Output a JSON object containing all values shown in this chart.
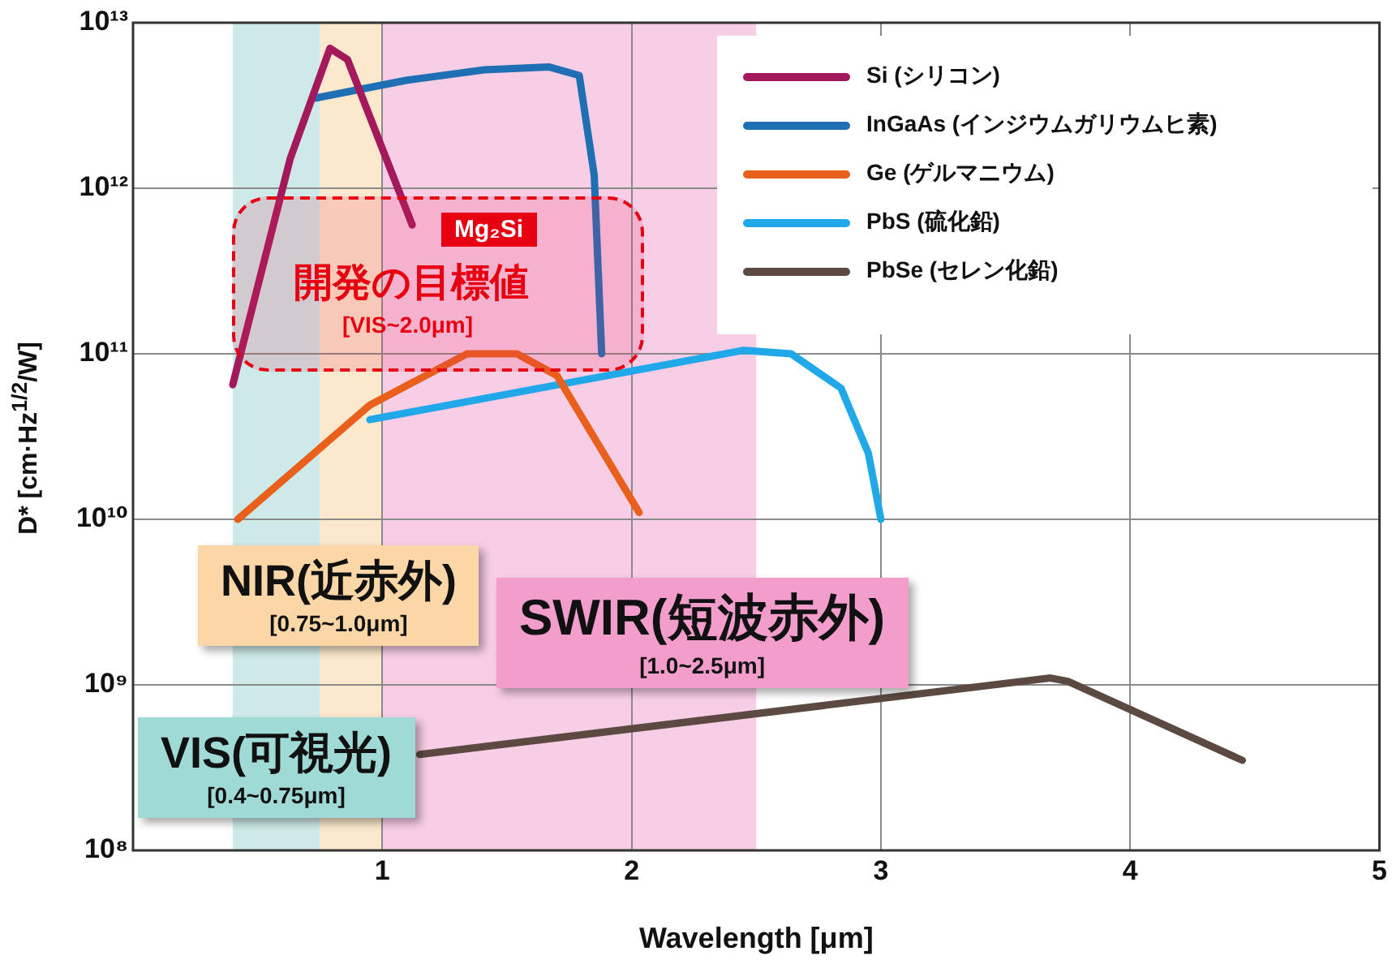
{
  "chart_data": {
    "type": "line",
    "xlabel": "Wavelength [μm]",
    "ylabel": "D* [cm·Hz$^{1/2}$/W]",
    "xlim": [
      0,
      5
    ],
    "xticks": [
      1,
      2,
      3,
      4,
      5
    ],
    "ylim": [
      100000000.0,
      10000000000000.0
    ],
    "yticks": [
      {
        "value": 100000000.0,
        "label": "10⁸"
      },
      {
        "value": 1000000000.0,
        "label": "10⁹"
      },
      {
        "value": 10000000000.0,
        "label": "10¹⁰"
      },
      {
        "value": 100000000000.0,
        "label": "10¹¹"
      },
      {
        "value": 1000000000000.0,
        "label": "10¹²"
      },
      {
        "value": 10000000000000.0,
        "label": "10¹³"
      }
    ],
    "log": "y",
    "grid": true,
    "legend": "top right",
    "line_style": "solid",
    "marker": "none",
    "series": [
      {
        "name": "Si (シリコン)",
        "color": "#a3195b",
        "x": [
          0.4,
          0.63,
          0.79,
          0.86,
          1.12
        ],
        "values": [
          65000000000.0,
          1500000000000.0,
          7000000000000.0,
          6000000000000.0,
          600000000000.0
        ]
      },
      {
        "name": "InGaAs (インジウムガリウムヒ素)",
        "color": "#1f6fb5",
        "x": [
          0.73,
          1.1,
          1.41,
          1.67,
          1.79,
          1.85,
          1.88
        ],
        "values": [
          3500000000000.0,
          4500000000000.0,
          5200000000000.0,
          5400000000000.0,
          4800000000000.0,
          1200000000000.0,
          100000000000.0
        ]
      },
      {
        "name": "Ge (ゲルマニウム)",
        "color": "#e8601c",
        "x": [
          0.42,
          0.95,
          1.34,
          1.54,
          1.7,
          2.03
        ],
        "values": [
          10000000000.0,
          49000000000.0,
          100000000000.0,
          100000000000.0,
          74000000000.0,
          11000000000.0
        ]
      },
      {
        "name": "PbS (硫化鉛)",
        "color": "#20a8e8",
        "x": [
          0.95,
          2.45,
          2.64,
          2.84,
          2.95,
          3.0
        ],
        "values": [
          40000000000.0,
          105000000000.0,
          100000000000.0,
          62000000000.0,
          25000000000.0,
          10000000000.0
        ]
      },
      {
        "name": "PbSe (セレン化鉛)",
        "color": "#5c4a42",
        "x": [
          1.15,
          3.68,
          3.75,
          4.45
        ],
        "values": [
          380000000.0,
          1100000000.0,
          1050000000.0,
          350000000.0
        ]
      }
    ],
    "bands": [
      {
        "axis": "x",
        "from": 0.4,
        "to": 0.75,
        "label": "VIS(可視光)\n[0.4~0.75μm]",
        "color": "#cdeae8"
      },
      {
        "axis": "x",
        "from": 0.75,
        "to": 1.0,
        "label": "NIR(近赤外)\n[0.75~1.0μm]",
        "color": "#fce8cc"
      },
      {
        "axis": "x",
        "from": 1.0,
        "to": 2.5,
        "label": "SWIR(短波赤外)\n[1.0~2.5μm]",
        "color": "#f8cde6"
      }
    ],
    "annotations": [
      "Mg₂Si",
      "開発の目標値",
      "[VIS~2.0μm]"
    ]
  }
}
